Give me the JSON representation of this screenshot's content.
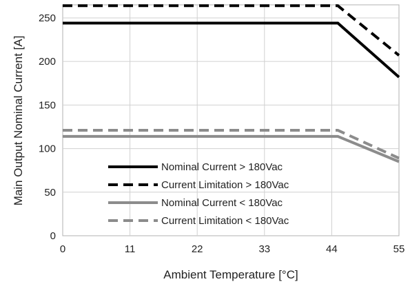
{
  "chart_data": {
    "type": "line",
    "xlabel": "Ambient Temperature [°C]",
    "ylabel": "Main Output Nominal Current [A]",
    "xlim": [
      0,
      55
    ],
    "ylim": [
      0,
      265
    ],
    "x_ticks": [
      0,
      11,
      22,
      33,
      44,
      55
    ],
    "y_ticks": [
      0,
      50,
      100,
      150,
      200,
      250
    ],
    "grid": true,
    "legend_position": "bottom-left",
    "series": [
      {
        "name": "Nominal Current > 180Vac",
        "color": "#000000",
        "dash": "solid",
        "x": [
          0,
          45,
          55
        ],
        "y": [
          244,
          244,
          182
        ]
      },
      {
        "name": "Current Limitation > 180Vac",
        "color": "#000000",
        "dash": "dashed",
        "x": [
          0,
          45,
          55
        ],
        "y": [
          264,
          264,
          207
        ]
      },
      {
        "name": "Nominal Current < 180Vac",
        "color": "#8c8c8c",
        "dash": "solid",
        "x": [
          0,
          45,
          55
        ],
        "y": [
          114,
          114,
          85
        ]
      },
      {
        "name": "Current Limitation < 180Vac",
        "color": "#8c8c8c",
        "dash": "dashed",
        "x": [
          0,
          45,
          55
        ],
        "y": [
          121,
          121,
          89
        ]
      }
    ]
  }
}
